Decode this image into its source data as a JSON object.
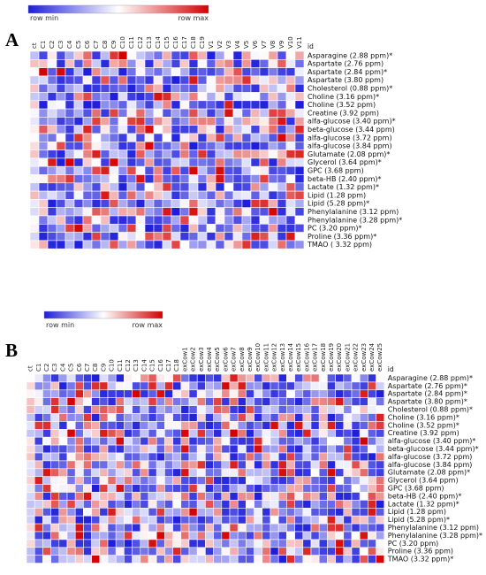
{
  "colors": {
    "low": "#1d1ddb",
    "mid": "#ffffff",
    "high": "#d40000",
    "cell_border": "#ffffff"
  },
  "chart_data": [
    {
      "type": "heatmap",
      "panel": "A",
      "legend": {
        "min_label": "row min",
        "max_label": "row max"
      },
      "id_label": "id",
      "columns": [
        "ct",
        "C1",
        "C2",
        "C3",
        "C4",
        "C5",
        "C6",
        "C7",
        "C8",
        "C9",
        "C10",
        "C11",
        "C12",
        "C13",
        "C14",
        "C15",
        "C16",
        "C17",
        "C18",
        "C19",
        "V1",
        "V2",
        "V3",
        "V4",
        "V5",
        "V6",
        "V7",
        "V8",
        "V9",
        "V10",
        "V11"
      ],
      "rows": [
        "Asparagine (2.88 ppm)*",
        "Aspartate (2.76 ppm)",
        "Aspartate (2.84 ppm)*",
        "Aspartate (3.80 ppm)",
        "Cholesterol (0.88 ppm)*",
        "Choline (3.16 ppm)*",
        "Choline (3.52 ppm)",
        "Creatine (3.92 ppm)",
        "alfa-glucose (3.40 ppm)*",
        "beta-glucose (3.44 ppm)",
        "alfa-glucose (3.72 ppm)",
        "alfa-glucose (3.84 ppm)",
        "Glutamate (2.08 ppm)*",
        "Glycerol (3.64 ppm)*",
        "GPC (3.68 ppm)",
        "beta-HB (2.40 ppm)*",
        "Lactate (1.32 ppm)*",
        "Lipid (1.28 ppm)",
        "Lipid (5.28 ppm)*",
        "Phenylalanine (3.12 ppm)",
        "Phenylalanine (3.28 ppm)*",
        "PC (3.20 ppm)*",
        "Proline (3.36 ppm)*",
        "TMAO ( 3.32 ppm)"
      ]
    },
    {
      "type": "heatmap",
      "panel": "B",
      "legend": {
        "min_label": "row min",
        "max_label": "row max"
      },
      "id_label": "id",
      "columns": [
        "ct",
        "C1",
        "C2",
        "C3",
        "C4",
        "C5",
        "C6",
        "C7",
        "C8",
        "C9",
        "C10",
        "C11",
        "C12",
        "C13",
        "C14",
        "C15",
        "C16",
        "C17",
        "C18",
        "exCow1",
        "exCow2",
        "exCow3",
        "exCow4",
        "exCow5",
        "exCow6",
        "exCow7",
        "exCow8",
        "exCow9",
        "exCow10",
        "exCow11",
        "exCow12",
        "exCow13",
        "exCow14",
        "exCow15",
        "exCow16",
        "exCow17",
        "exCow18",
        "exCow19",
        "exCow20",
        "exCow21",
        "exCow22",
        "exCow23",
        "exCow24",
        "exCow25"
      ],
      "rows": [
        "Asparagine (2.88 ppm)*",
        "Aspartate (2.76 ppm)*",
        "Aspartate (2.84 ppm)*",
        "Aspartate (3.80 ppm)*",
        "Cholesterol (0.88 ppm)*",
        "Choline (3.16 ppm)*",
        "Choline (3.52 ppm)*",
        "Creatine (3.92 ppm)",
        "alfa-glucose (3.40 ppm)*",
        "beta-glucose (3.44 ppm)*",
        "alfa-glucose (3.72 ppm)",
        "alfa-glucose (3.84 ppm)",
        "Glutamate (2.08 ppm)*",
        "Glycerol (3.64 ppm)",
        "GPC (3.68 ppm)",
        "beta-HB (2.40 ppm)*",
        "Lactate (1.32 ppm)*",
        "Lipid (1.28 ppm)",
        "Lipid (5.28 ppm)*",
        "Phenylalanine (3.12 ppm)",
        "Phenylalanine (3.28 ppm)*",
        "PC (3.20 ppm)",
        "Proline (3.36 ppm)",
        "TMAO (3.32 ppm)*"
      ]
    }
  ]
}
